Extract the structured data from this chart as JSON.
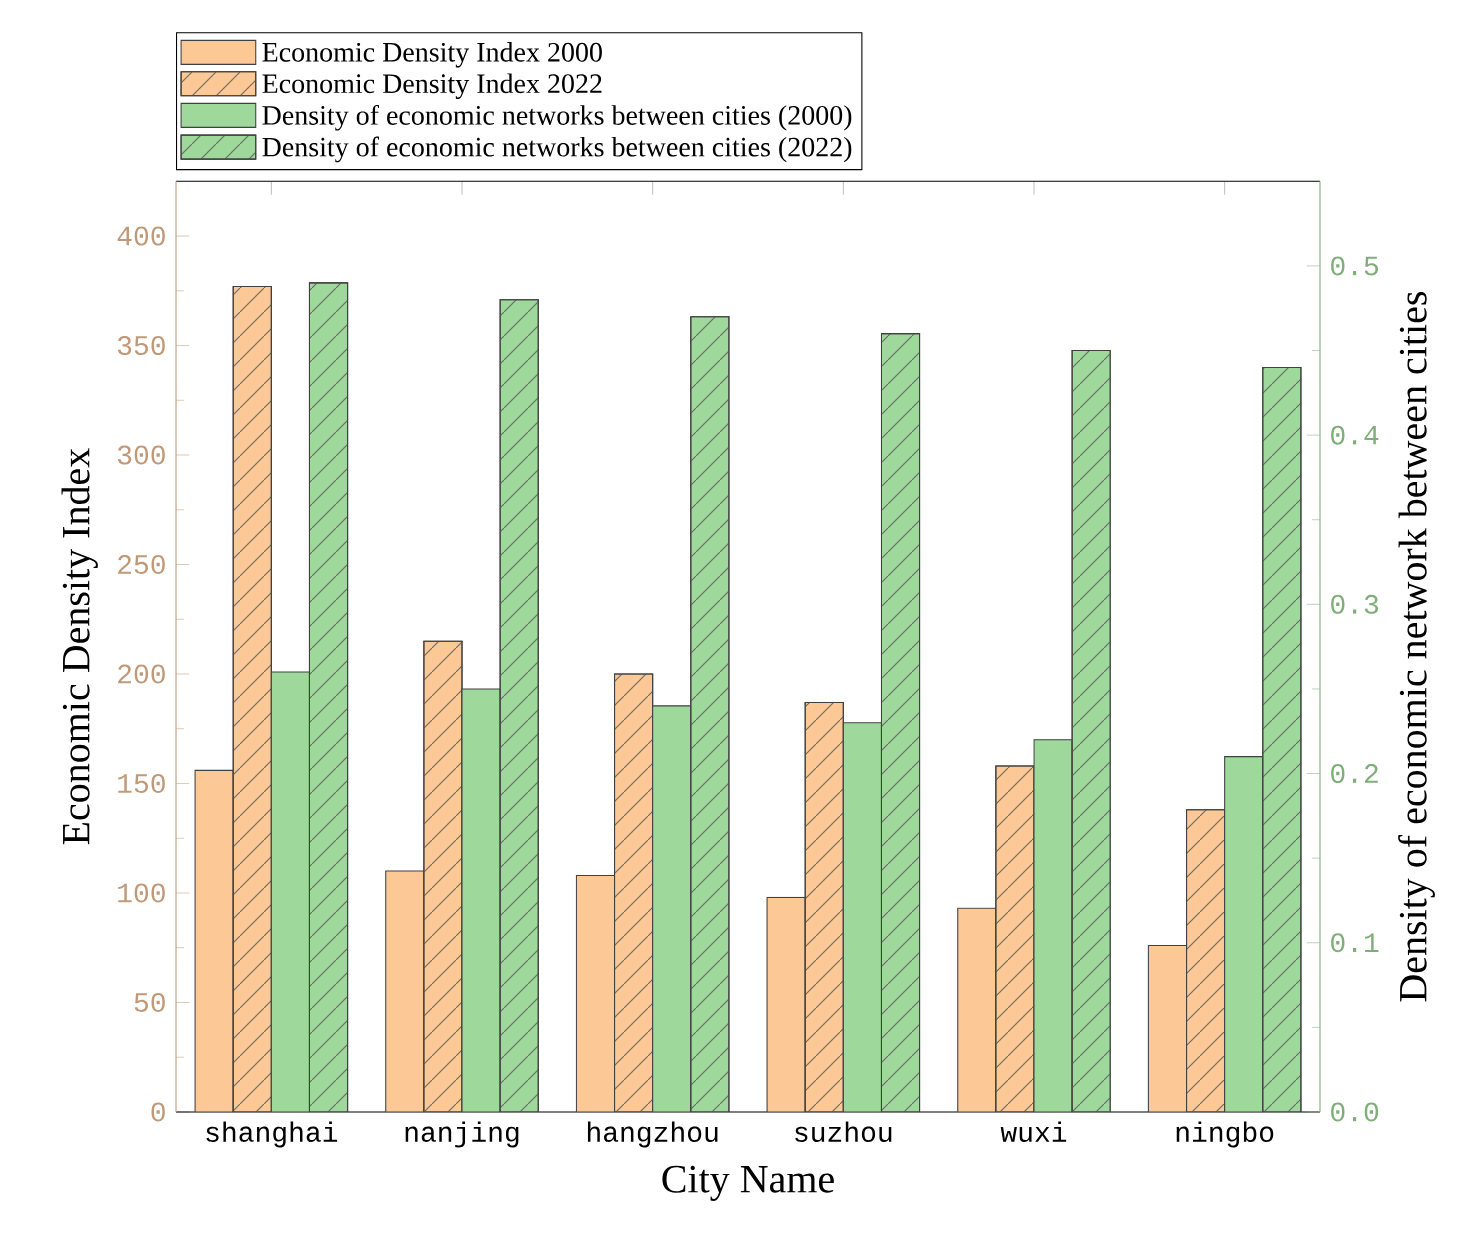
{
  "chart_data": {
    "type": "bar",
    "xlabel": "City Name",
    "ylabel": "Economic Density Index",
    "y2label": "Density of economic network between cities",
    "categories": [
      "shanghai",
      "nanjing",
      "hangzhou",
      "suzhou",
      "wuxi",
      "ningbo"
    ],
    "series": [
      {
        "name": "Economic Density Index 2000",
        "color": "#fcc896",
        "values": [
          156,
          110,
          108,
          98,
          93,
          76
        ]
      },
      {
        "name": "Economic Density Index 2022",
        "color": "#fcc896",
        "values": [
          377,
          215,
          200,
          187,
          158,
          138
        ]
      },
      {
        "name": "Density of economic networks between cities (2000)",
        "color": "#9ed89a",
        "axis": "y2",
        "values": [
          0.26,
          0.25,
          0.24,
          0.23,
          0.22,
          0.21
        ]
      },
      {
        "name": "Density of economic networks between cities (2022)",
        "color": "#9ed89a",
        "axis": "y2",
        "values": [
          0.49,
          0.48,
          0.47,
          0.46,
          0.45,
          0.44
        ]
      }
    ],
    "ylim": [
      0,
      425
    ],
    "yticks": [
      0,
      50,
      100,
      150,
      200,
      250,
      300,
      350,
      400
    ],
    "y2lim": [
      0,
      0.55
    ],
    "y2ticks": [
      {
        "value": 0,
        "label": "0.0"
      },
      0.1,
      0.2,
      0.3,
      0.4,
      0.5
    ],
    "legend": "top left",
    "grid": false
  }
}
